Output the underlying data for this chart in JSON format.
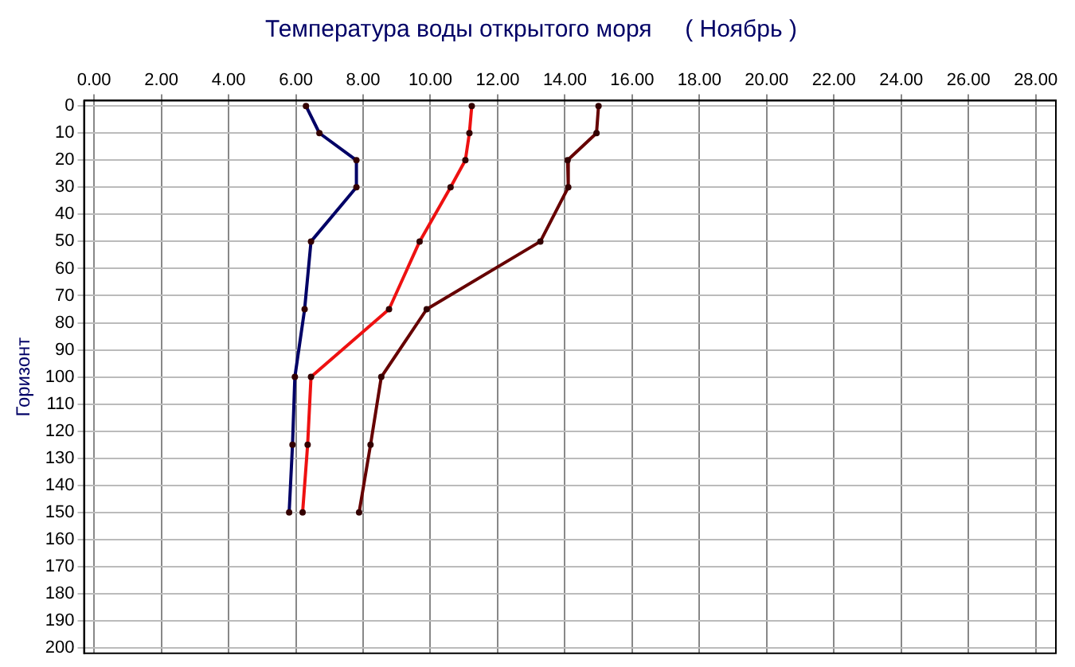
{
  "chart_data": {
    "type": "line",
    "title": "Температура воды открытого моря     ( Ноябрь )",
    "ylabel": "Горизонт",
    "xlim": [
      -0.3,
      28.6
    ],
    "ylim": [
      202,
      -2
    ],
    "xticks": [
      {
        "value": 0,
        "label": "0.00"
      },
      {
        "value": 2,
        "label": "2.00"
      },
      {
        "value": 4,
        "label": "4.00"
      },
      {
        "value": 6,
        "label": "6.00"
      },
      {
        "value": 8,
        "label": "8.00"
      },
      {
        "value": 10,
        "label": "10.00"
      },
      {
        "value": 12,
        "label": "12.00"
      },
      {
        "value": 14,
        "label": "14.00"
      },
      {
        "value": 16,
        "label": "16.00"
      },
      {
        "value": 18,
        "label": "18.00"
      },
      {
        "value": 20,
        "label": "20.00"
      },
      {
        "value": 22,
        "label": "22.00"
      },
      {
        "value": 24,
        "label": "24.00"
      },
      {
        "value": 26,
        "label": "26.00"
      },
      {
        "value": 28,
        "label": "28.00"
      }
    ],
    "yticks": [
      0,
      10,
      20,
      30,
      40,
      50,
      60,
      70,
      80,
      90,
      100,
      110,
      120,
      130,
      140,
      150,
      160,
      170,
      180,
      190,
      200
    ],
    "grid": true,
    "legend": false,
    "marker": "circle",
    "line_style": "solid",
    "series": [
      {
        "color": "#000066",
        "x": [
          6.3,
          6.7,
          7.8,
          7.8,
          6.45,
          6.26,
          5.97,
          5.9,
          5.8
        ],
        "values": [
          0,
          10,
          20,
          30,
          50,
          75,
          100,
          125,
          150
        ]
      },
      {
        "color": "#ee1111",
        "x": [
          11.23,
          11.16,
          11.04,
          10.6,
          9.68,
          8.77,
          6.45,
          6.35,
          6.2
        ],
        "values": [
          0,
          10,
          20,
          30,
          50,
          75,
          100,
          125,
          150
        ]
      },
      {
        "color": "#660000",
        "x": [
          15.0,
          14.94,
          14.08,
          14.1,
          13.27,
          9.89,
          8.54,
          8.22,
          7.88
        ],
        "values": [
          0,
          10,
          20,
          30,
          50,
          75,
          100,
          125,
          150
        ]
      }
    ]
  }
}
